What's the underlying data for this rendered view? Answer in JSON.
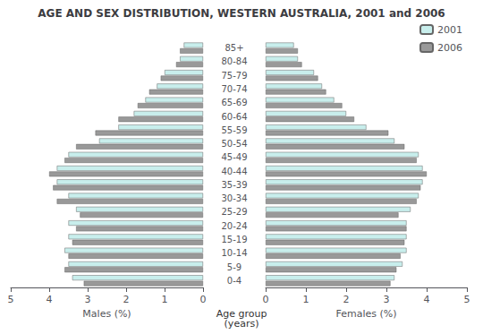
{
  "chart_data": [
    {
      "type": "bar",
      "orientation": "horizontal",
      "title": "AGE AND SEX DISTRIBUTION, WESTERN AUSTRALIA, 2001 and 2006",
      "xlabel": "Males (%)",
      "ylabel": "Age group\n(years)",
      "categories": [
        "0-4",
        "5-9",
        "10-14",
        "15-19",
        "20-24",
        "25-29",
        "30-34",
        "35-39",
        "40-44",
        "45-49",
        "50-54",
        "55-59",
        "60-64",
        "65-69",
        "70-74",
        "75-79",
        "80-84",
        "85+"
      ],
      "series": [
        {
          "name": "2001",
          "color": "#c8eeec",
          "values": [
            3.4,
            3.5,
            3.6,
            3.5,
            3.5,
            3.3,
            3.5,
            3.8,
            3.8,
            3.5,
            2.7,
            2.2,
            1.8,
            1.5,
            1.2,
            1.0,
            0.6,
            0.5
          ]
        },
        {
          "name": "2006",
          "color": "#999999",
          "values": [
            3.1,
            3.6,
            3.5,
            3.4,
            3.3,
            3.2,
            3.8,
            3.9,
            4.0,
            3.6,
            3.3,
            2.8,
            2.2,
            1.7,
            1.4,
            1.1,
            0.7,
            0.6
          ]
        }
      ],
      "xlim": [
        5,
        0
      ],
      "xticks": [
        0,
        1,
        2,
        3,
        4,
        5
      ],
      "grid": false
    },
    {
      "type": "bar",
      "orientation": "horizontal",
      "xlabel": "Females (%)",
      "categories": [
        "0-4",
        "5-9",
        "10-14",
        "15-19",
        "20-24",
        "25-29",
        "30-34",
        "35-39",
        "40-44",
        "45-49",
        "50-54",
        "55-59",
        "60-64",
        "65-69",
        "70-74",
        "75-79",
        "80-84",
        "85+"
      ],
      "series": [
        {
          "name": "2001",
          "color": "#c8eeec",
          "values": [
            3.2,
            3.4,
            3.5,
            3.5,
            3.5,
            3.6,
            3.8,
            3.9,
            3.9,
            3.8,
            3.2,
            2.5,
            2.0,
            1.7,
            1.4,
            1.2,
            0.8,
            0.7
          ]
        },
        {
          "name": "2006",
          "color": "#999999",
          "values": [
            3.1,
            3.25,
            3.35,
            3.45,
            3.5,
            3.3,
            3.75,
            3.85,
            4.0,
            3.75,
            3.45,
            3.05,
            2.2,
            1.9,
            1.5,
            1.3,
            0.9,
            0.8
          ]
        }
      ],
      "xlim": [
        0,
        5
      ],
      "xticks": [
        0,
        1,
        2,
        3,
        4,
        5
      ],
      "grid": false,
      "legend": "upper right"
    }
  ]
}
